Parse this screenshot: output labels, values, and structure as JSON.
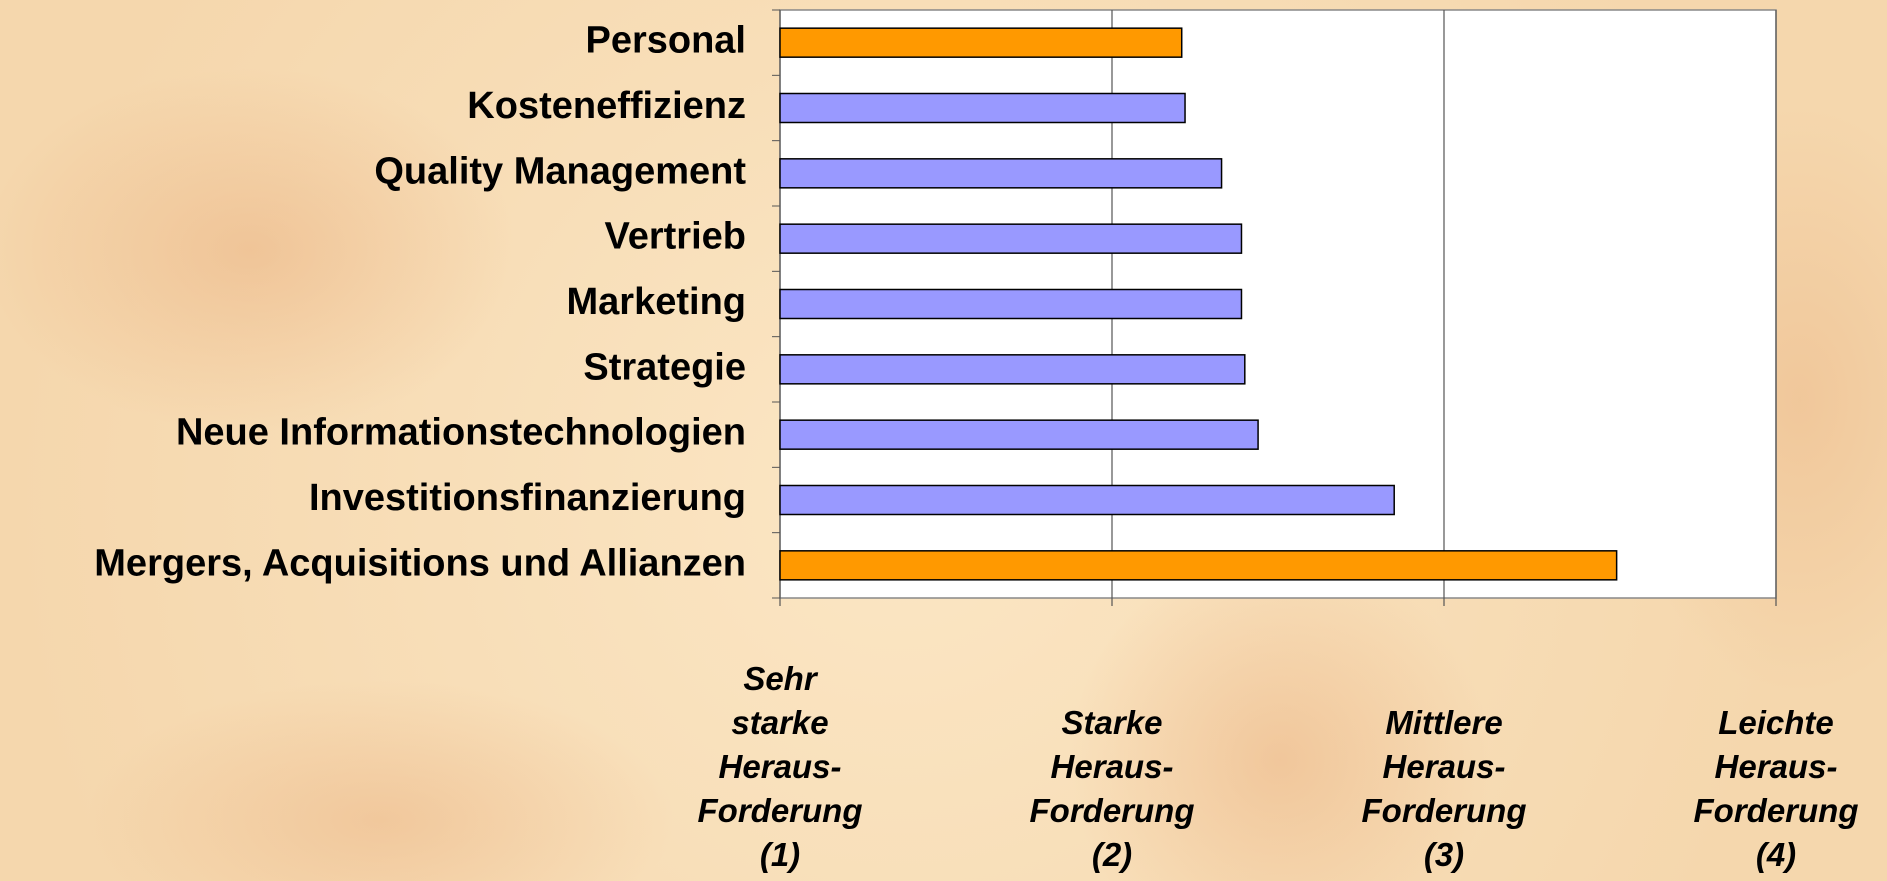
{
  "chart_data": {
    "type": "bar",
    "orientation": "horizontal",
    "categories": [
      "Personal",
      "Kosteneffizienz",
      "Quality Management",
      "Vertrieb",
      "Marketing",
      "Strategie",
      "Neue Informationstechnologien",
      "Investitionsfinanzierung",
      "Mergers, Acquisitions und Allianzen"
    ],
    "values": [
      2.21,
      2.22,
      2.33,
      2.39,
      2.39,
      2.4,
      2.44,
      2.85,
      3.52
    ],
    "colors": [
      "#ff9900",
      "#9999ff",
      "#9999ff",
      "#9999ff",
      "#9999ff",
      "#9999ff",
      "#9999ff",
      "#9999ff",
      "#ff9900"
    ],
    "xlim": [
      1,
      4
    ],
    "xticks": [
      {
        "value": 1,
        "label": "Sehr\nstarke\nHeraus-\nForderung\n(1)"
      },
      {
        "value": 2,
        "label": "Starke\nHeraus-\nForderung\n(2)"
      },
      {
        "value": 3,
        "label": "Mittlere\nHeraus-\nForderung\n(3)"
      },
      {
        "value": 4,
        "label": "Leichte\nHeraus-\nForderung\n(4)"
      }
    ],
    "grid": true
  }
}
